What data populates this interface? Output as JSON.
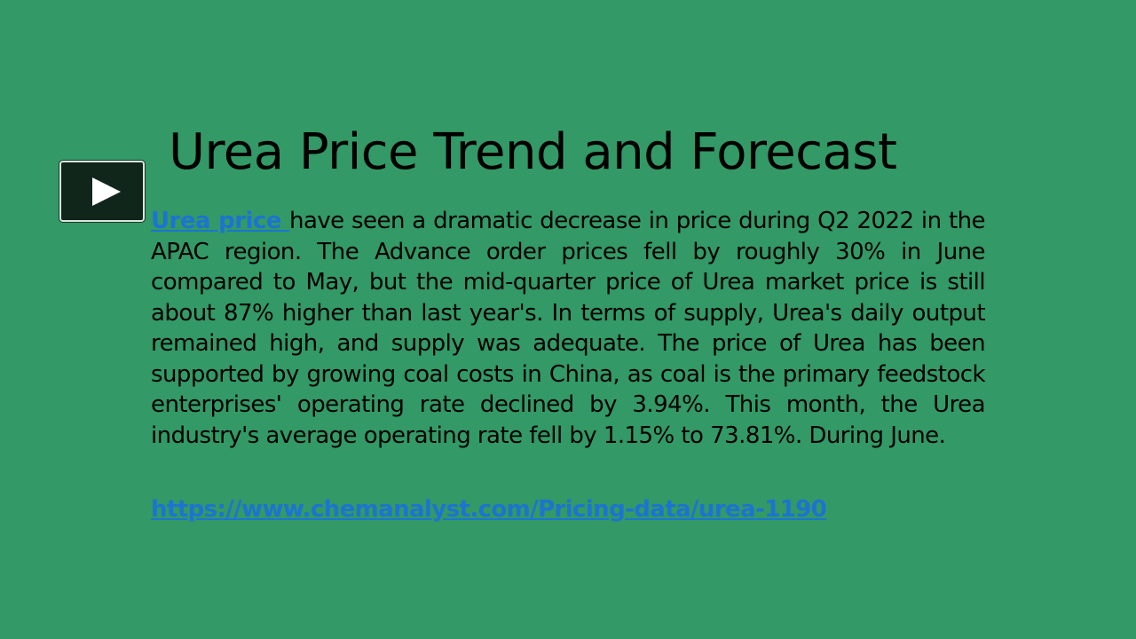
{
  "slide": {
    "title": "Urea Price Trend and Forecast",
    "body": {
      "link_text": "Urea price ",
      "text": "have seen a dramatic decrease in price during Q2 2022 in the APAC region. The Advance order prices fell by roughly 30% in June compared to May, but the mid-quarter price of Urea market price is still about 87% higher than last year's. In terms of supply, Urea's daily output remained high, and supply was adequate. The price of Urea has been supported by growing coal costs in China, as coal is the primary feedstock enterprises' operating rate declined by 3.94%. This month, the Urea industry's average operating rate fell by 1.15% to 73.81%. During June."
    },
    "source_link": "https://www.chemanalyst.com/Pricing-data/urea-1190"
  },
  "controls": {
    "play_icon": "play-icon"
  },
  "colors": {
    "background": "#339966",
    "link": "#1c74d0",
    "text": "#000000"
  }
}
